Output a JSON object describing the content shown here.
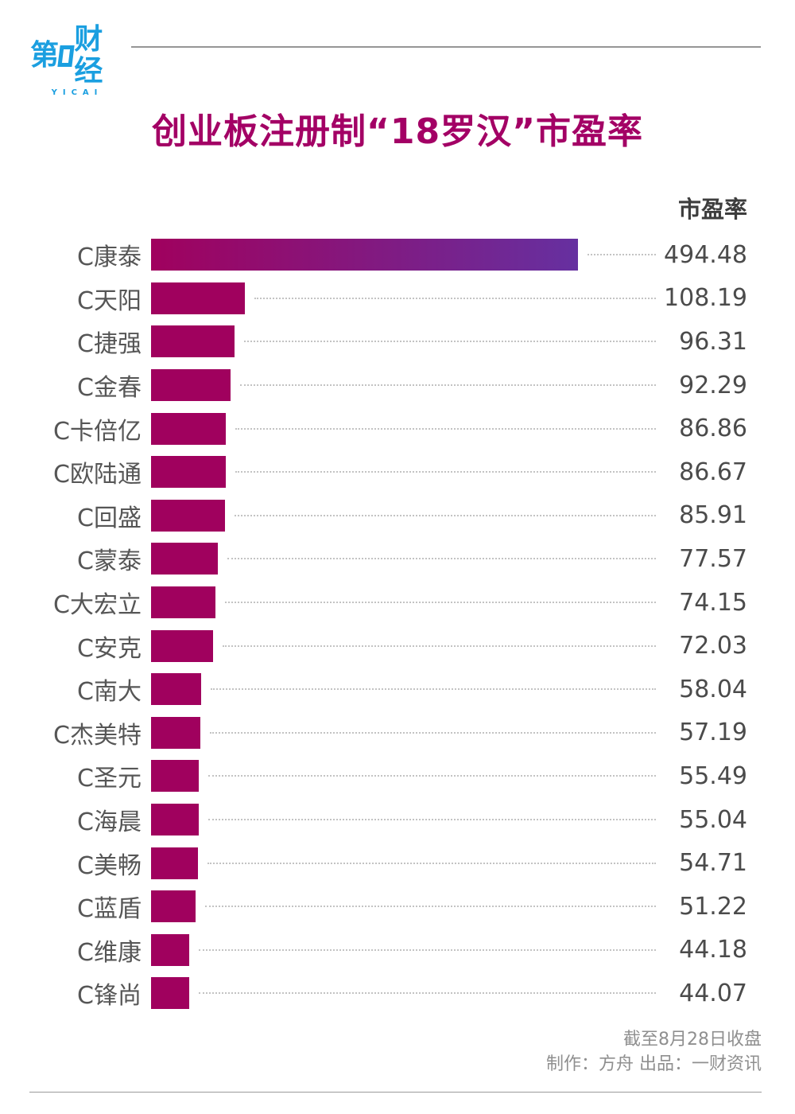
{
  "brand": {
    "logo_text_prefix": "第",
    "logo_text_suffix": "财经",
    "logo_subtext": "YICAI",
    "logo_color": "#1b9fe0"
  },
  "title": "创业板注册制“18罗汉”市盈率",
  "title_color": "#a30065",
  "chart_data": {
    "type": "bar",
    "orientation": "horizontal",
    "title": "创业板注册制“18罗汉”市盈率",
    "value_column_header": "市盈率",
    "categories": [
      "C康泰",
      "C天阳",
      "C捷强",
      "C金春",
      "C卡倍亿",
      "C欧陆通",
      "C回盛",
      "C蒙泰",
      "C大宏立",
      "C安克",
      "C南大",
      "C杰美特",
      "C圣元",
      "C海晨",
      "C美畅",
      "C蓝盾",
      "C维康",
      "C锋尚"
    ],
    "values": [
      494.48,
      108.19,
      96.31,
      92.29,
      86.86,
      86.67,
      85.91,
      77.57,
      74.15,
      72.03,
      58.04,
      57.19,
      55.49,
      55.04,
      54.71,
      51.22,
      44.18,
      44.07
    ],
    "xlim": [
      0,
      500
    ],
    "grid": false,
    "legend": false,
    "bar_color": "#a0015e",
    "top_bar_gradient_start": "#a0015e",
    "top_bar_gradient_end": "#6630a0",
    "leader_line_color": "#c3c3c3"
  },
  "footer": {
    "note_date": "截至8月28日收盘",
    "note_credits": "制作：方舟 出品：一财资讯"
  }
}
